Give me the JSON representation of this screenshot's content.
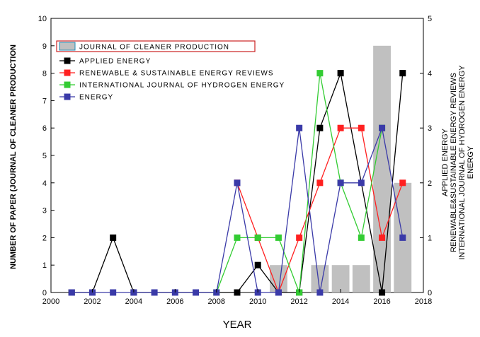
{
  "chart_data": {
    "type": "bar",
    "xlabel": "YEAR",
    "ylabel_left": "NUMBER OF PAPER (JOURNAL OF CLEANER PRODUCTION",
    "ylabel_right": [
      "APPLIED ENERGY",
      "RENEWABLE&SUSTAINABLE ENERGY REVIEWS",
      "INTERNATIONAL JOURNAL OF HYDROGEN ENERGY",
      "ENERGY"
    ],
    "xlim": [
      2000,
      2018
    ],
    "ylim_left": [
      0,
      10
    ],
    "ylim_right": [
      0,
      5
    ],
    "x_ticks": [
      "2000",
      "2002",
      "2004",
      "2006",
      "2008",
      "2010",
      "2012",
      "2014",
      "2016",
      "2018"
    ],
    "y_left_ticks": [
      "0",
      "1",
      "2",
      "3",
      "4",
      "5",
      "6",
      "7",
      "8",
      "9",
      "10"
    ],
    "y_right_ticks": [
      "0",
      "1",
      "2",
      "3",
      "4",
      "5"
    ],
    "bars": {
      "name": "JOURNAL OF CLEANER PRODUCTION",
      "color": "#c0c0c0",
      "x": [
        2011,
        2013,
        2014,
        2015,
        2016,
        2017
      ],
      "values": [
        1,
        1,
        1,
        1,
        9,
        4
      ]
    },
    "series": [
      {
        "name": "APPLIED ENERGY",
        "color": "#000000",
        "x": [
          2001,
          2002,
          2003,
          2004,
          2009,
          2010,
          2011,
          2012,
          2013,
          2014,
          2016,
          2017
        ],
        "values": [
          0,
          0,
          2,
          0,
          0,
          1,
          0,
          0,
          6,
          8,
          0,
          8
        ]
      },
      {
        "name": "RENEWABLE & SUSTAINABLE ENERGY REVIEWS",
        "color": "#ff2020",
        "x": [
          2009,
          2010,
          2011,
          2012,
          2013,
          2014,
          2015,
          2016,
          2017
        ],
        "values": [
          4,
          2,
          0,
          2,
          4,
          6,
          6,
          2,
          4
        ]
      },
      {
        "name": "INTERNATIONAL JOURNAL OF HYDROGEN ENERGY",
        "color": "#33cc33",
        "x": [
          2008,
          2009,
          2010,
          2011,
          2012,
          2013,
          2014,
          2015,
          2016
        ],
        "values": [
          0,
          2,
          2,
          2,
          0,
          8,
          4,
          2,
          6
        ]
      },
      {
        "name": "ENERGY",
        "color": "#3a3aa8",
        "x": [
          2001,
          2002,
          2003,
          2004,
          2005,
          2006,
          2007,
          2008,
          2009,
          2010,
          2011,
          2012,
          2013,
          2014,
          2015,
          2016,
          2017
        ],
        "values": [
          0,
          0,
          0,
          0,
          0,
          0,
          0,
          0,
          4,
          0,
          0,
          6,
          0,
          4,
          4,
          6,
          2
        ]
      }
    ],
    "legend_position": "top-left"
  }
}
